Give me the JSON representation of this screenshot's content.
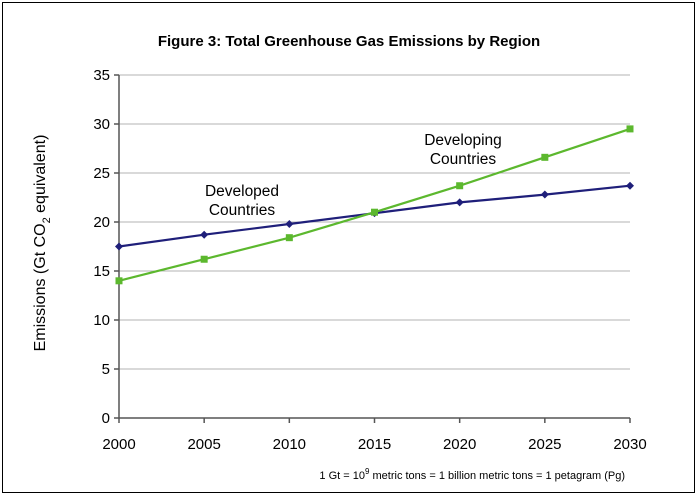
{
  "chart_data": {
    "type": "line",
    "title": "Figure 3: Total Greenhouse Gas Emissions by Region",
    "xlabel": "",
    "ylabel": {
      "prefix": "Emissions (Gt CO",
      "subscript": "2",
      "suffix": " equivalent)"
    },
    "x": [
      2000,
      2005,
      2010,
      2015,
      2020,
      2025,
      2030
    ],
    "xlim": [
      2000,
      2030
    ],
    "ylim": [
      0,
      35
    ],
    "yticks": [
      0,
      5,
      10,
      15,
      20,
      25,
      30,
      35
    ],
    "grid": true,
    "series": [
      {
        "name": "Developed Countries",
        "label_lines": [
          "Developed",
          "Countries"
        ],
        "color": "#1f1f7a",
        "marker": "diamond",
        "values": [
          17.5,
          18.7,
          19.8,
          20.9,
          22.0,
          22.8,
          23.7
        ]
      },
      {
        "name": "Developing Countries",
        "label_lines": [
          "Developing",
          "Countries"
        ],
        "color": "#5cb82e",
        "marker": "square",
        "values": [
          14.0,
          16.2,
          18.4,
          21.0,
          23.7,
          26.6,
          29.5
        ]
      }
    ],
    "footnote": {
      "pre": "1 Gt = 10",
      "sup": "9",
      "post": " metric tons = 1 billion metric tons = 1 petagram (Pg)"
    }
  }
}
